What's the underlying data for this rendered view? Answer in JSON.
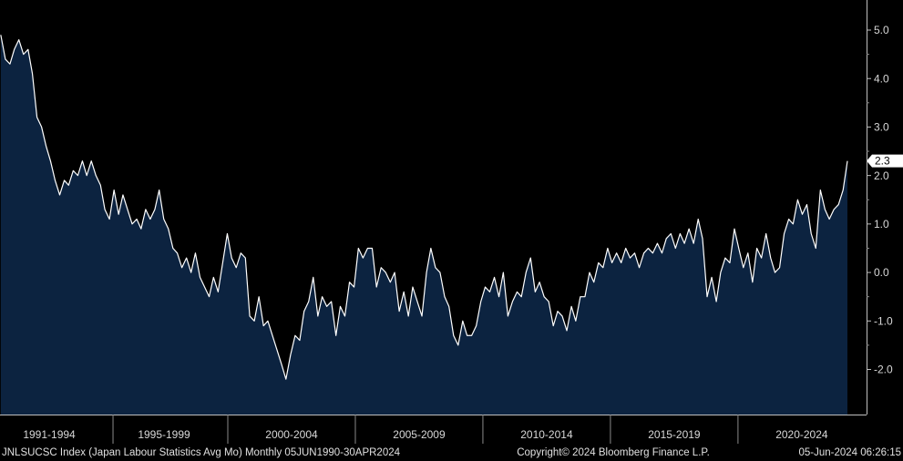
{
  "chart_data": {
    "type": "area",
    "footer_left": "JNLSUCSC Index (Japan Labour Statistics Avg Mo)  Monthly 05JUN1990-30APR2024",
    "footer_center": "Copyright© 2024 Bloomberg Finance L.P.",
    "footer_right": "05-Jun-2024 06:26:15",
    "x": [
      1991.1,
      1991.28,
      1991.46,
      1991.63,
      1991.81,
      1991.99,
      1992.17,
      1992.34,
      1992.52,
      1992.7,
      1992.88,
      1993.05,
      1993.23,
      1993.41,
      1993.59,
      1993.76,
      1993.94,
      1994.12,
      1994.3,
      1994.47,
      1994.65,
      1994.83,
      1995.01,
      1995.18,
      1995.36,
      1995.54,
      1995.72,
      1995.89,
      1996.07,
      1996.25,
      1996.43,
      1996.6,
      1996.78,
      1996.96,
      1997.14,
      1997.31,
      1997.49,
      1997.67,
      1997.85,
      1998.02,
      1998.2,
      1998.38,
      1998.56,
      1998.73,
      1998.91,
      1999.09,
      1999.27,
      1999.44,
      1999.62,
      1999.8,
      1999.98,
      2000.15,
      2000.33,
      2000.51,
      2000.69,
      2000.86,
      2001.04,
      2001.22,
      2001.4,
      2001.57,
      2001.75,
      2001.93,
      2002.11,
      2002.28,
      2002.46,
      2002.64,
      2002.82,
      2002.99,
      2003.17,
      2003.35,
      2003.53,
      2003.7,
      2003.88,
      2004.06,
      2004.24,
      2004.41,
      2004.59,
      2004.77,
      2004.95,
      2005.12,
      2005.3,
      2005.48,
      2005.66,
      2005.83,
      2006.01,
      2006.19,
      2006.37,
      2006.54,
      2006.72,
      2006.9,
      2007.08,
      2007.25,
      2007.43,
      2007.61,
      2007.79,
      2007.96,
      2008.14,
      2008.32,
      2008.5,
      2008.67,
      2008.85,
      2009.03,
      2009.21,
      2009.38,
      2009.56,
      2009.74,
      2009.92,
      2010.09,
      2010.27,
      2010.45,
      2010.63,
      2010.8,
      2010.98,
      2011.16,
      2011.34,
      2011.51,
      2011.69,
      2011.87,
      2012.05,
      2012.22,
      2012.4,
      2012.58,
      2012.76,
      2012.93,
      2013.11,
      2013.29,
      2013.47,
      2013.64,
      2013.82,
      2014.0,
      2014.18,
      2014.35,
      2014.53,
      2014.71,
      2014.89,
      2015.06,
      2015.24,
      2015.42,
      2015.6,
      2015.77,
      2015.95,
      2016.13,
      2016.31,
      2016.48,
      2016.66,
      2016.84,
      2017.02,
      2017.19,
      2017.37,
      2017.55,
      2017.73,
      2017.9,
      2018.08,
      2018.26,
      2018.44,
      2018.61,
      2018.79,
      2018.97,
      2019.15,
      2019.32,
      2019.5,
      2019.68,
      2019.86,
      2020.03,
      2020.21,
      2020.39,
      2020.57,
      2020.74,
      2020.92,
      2021.1,
      2021.28,
      2021.45,
      2021.63,
      2021.81,
      2021.99,
      2022.16,
      2022.34,
      2022.52,
      2022.7,
      2022.87,
      2023.05,
      2023.23,
      2023.41,
      2023.58,
      2023.76,
      2023.94,
      2024.12,
      2024.29
    ],
    "series": [
      {
        "color": "#ffffff",
        "fill": "#0c2340",
        "values": [
          4.9,
          4.4,
          4.3,
          4.6,
          4.8,
          4.5,
          4.6,
          4.1,
          3.2,
          3.0,
          2.6,
          2.3,
          1.9,
          1.6,
          1.9,
          1.8,
          2.1,
          2.0,
          2.3,
          2.0,
          2.3,
          2.0,
          1.8,
          1.3,
          1.1,
          1.7,
          1.2,
          1.6,
          1.3,
          1.0,
          1.1,
          0.9,
          1.3,
          1.1,
          1.3,
          1.7,
          1.1,
          0.9,
          0.5,
          0.4,
          0.1,
          0.3,
          0.0,
          0.4,
          -0.1,
          -0.3,
          -0.5,
          -0.1,
          -0.4,
          0.2,
          0.8,
          0.3,
          0.1,
          0.4,
          0.3,
          -0.9,
          -1.0,
          -0.5,
          -1.1,
          -1.0,
          -1.3,
          -1.6,
          -1.9,
          -2.2,
          -1.7,
          -1.3,
          -1.4,
          -0.8,
          -0.6,
          -0.1,
          -0.9,
          -0.5,
          -0.7,
          -0.6,
          -1.3,
          -0.7,
          -0.9,
          -0.2,
          -0.3,
          0.5,
          0.3,
          0.5,
          0.5,
          -0.3,
          0.1,
          0.0,
          -0.2,
          0.0,
          -0.8,
          -0.4,
          -0.9,
          -0.3,
          -0.6,
          -0.9,
          0.0,
          0.5,
          0.1,
          0.0,
          -0.5,
          -0.7,
          -1.3,
          -1.5,
          -1.0,
          -1.3,
          -1.3,
          -1.1,
          -0.6,
          -0.3,
          -0.4,
          -0.1,
          -0.5,
          0.0,
          -0.9,
          -0.6,
          -0.4,
          -0.5,
          0.0,
          0.3,
          -0.4,
          -0.2,
          -0.5,
          -0.6,
          -1.1,
          -0.8,
          -0.9,
          -1.2,
          -0.7,
          -1.0,
          -0.5,
          -0.5,
          0.0,
          -0.2,
          0.2,
          0.1,
          0.5,
          0.2,
          0.4,
          0.2,
          0.5,
          0.3,
          0.4,
          0.1,
          0.4,
          0.5,
          0.4,
          0.6,
          0.4,
          0.7,
          0.8,
          0.5,
          0.8,
          0.6,
          0.9,
          0.6,
          1.1,
          0.7,
          -0.5,
          -0.1,
          -0.6,
          0.0,
          0.3,
          0.2,
          0.9,
          0.5,
          0.1,
          0.4,
          -0.2,
          0.5,
          0.3,
          0.8,
          0.3,
          0.0,
          0.1,
          0.8,
          1.1,
          1.0,
          1.5,
          1.2,
          1.4,
          0.8,
          0.5,
          1.7,
          1.3,
          1.1,
          1.3,
          1.4,
          1.7,
          2.3
        ]
      }
    ],
    "xlim": [
      1991.07,
      2025.04
    ],
    "xticks": [
      {
        "value": 1993.0,
        "label": "1991-1994"
      },
      {
        "value": 1997.5,
        "label": "1995-1999"
      },
      {
        "value": 2002.5,
        "label": "2000-2004"
      },
      {
        "value": 2007.5,
        "label": "2005-2009"
      },
      {
        "value": 2012.5,
        "label": "2010-2014"
      },
      {
        "value": 2017.5,
        "label": "2015-2019"
      },
      {
        "value": 2022.5,
        "label": "2020-2024"
      }
    ],
    "ylim": [
      -2.93,
      5.62
    ],
    "yticks": [
      {
        "value": -2,
        "label": "-2.0"
      },
      {
        "value": -1,
        "label": "-1.0"
      },
      {
        "value": 0,
        "label": "0.0"
      },
      {
        "value": 1,
        "label": "1.0"
      },
      {
        "value": 2,
        "label": "2.0"
      },
      {
        "value": 3,
        "label": "3.0"
      },
      {
        "value": 4,
        "label": "4.0"
      },
      {
        "value": 5,
        "label": "5.0"
      }
    ],
    "last_value_tag": true
  }
}
